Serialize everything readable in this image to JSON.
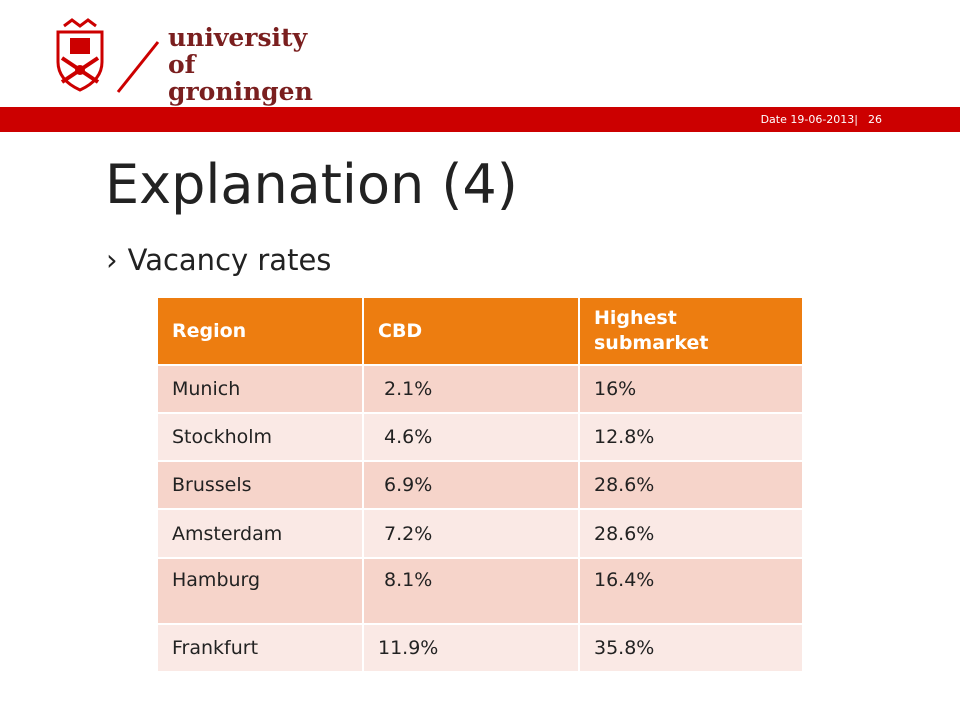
{
  "logo": {
    "line1": "university of",
    "line2": "groningen"
  },
  "header": {
    "date": "Date 19-06-2013",
    "separator": "|",
    "page": "26"
  },
  "slide": {
    "title": "Explanation (4)",
    "bullet_mark": "›",
    "bullet": "Vacancy rates"
  },
  "table": {
    "headers": [
      "Region",
      "CBD",
      "Highest submarket"
    ],
    "rows": [
      [
        "Munich",
        " 2.1%",
        "16%"
      ],
      [
        "Stockholm",
        " 4.6%",
        "12.8%"
      ],
      [
        "Brussels",
        " 6.9%",
        "28.6%"
      ],
      [
        "Amsterdam",
        " 7.2%",
        "28.6%"
      ],
      [
        "Hamburg",
        " 8.1%",
        "16.4%"
      ],
      [
        "Frankfurt",
        "11.9%",
        "35.8%"
      ]
    ]
  },
  "colors": {
    "brand_red": "#cc0000",
    "header_orange": "#ed7d10",
    "row_dark": "#f6d4ca",
    "row_light": "#fae9e5"
  }
}
